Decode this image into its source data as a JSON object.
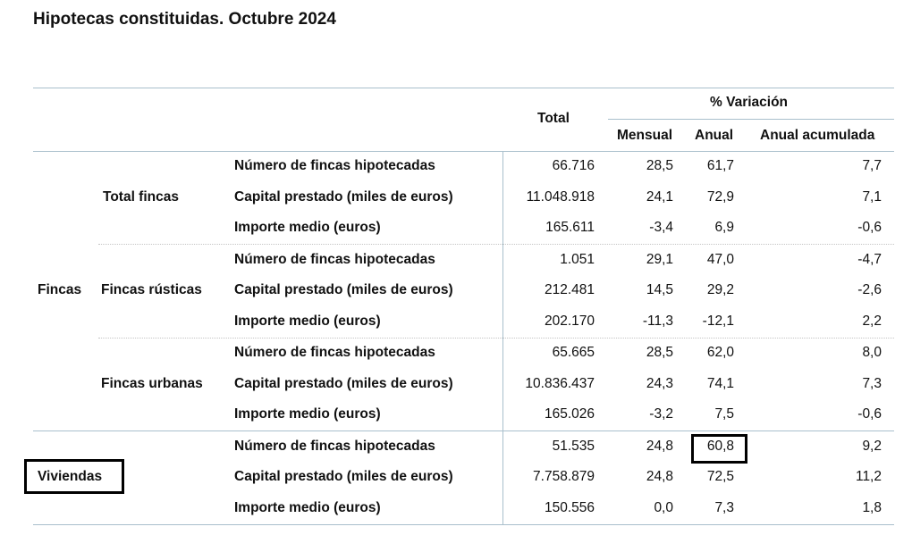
{
  "title": "Hipotecas constituidas. Octubre 2024",
  "header": {
    "total": "Total",
    "variation": "% Variación",
    "mensual": "Mensual",
    "anual": "Anual",
    "anual_acumulada": "Anual acumulada"
  },
  "group_fincas": "Fincas",
  "group_viviendas": "Viviendas",
  "sections": [
    {
      "label": "Total fincas",
      "rows": [
        {
          "metric": "Número de fincas hipotecadas",
          "total": "66.716",
          "mensual": "28,5",
          "anual": "61,7",
          "acumulada": "7,7"
        },
        {
          "metric": "Capital prestado (miles de euros)",
          "total": "11.048.918",
          "mensual": "24,1",
          "anual": "72,9",
          "acumulada": "7,1"
        },
        {
          "metric": "Importe medio (euros)",
          "total": "165.611",
          "mensual": "-3,4",
          "anual": "6,9",
          "acumulada": "-0,6"
        }
      ]
    },
    {
      "label": "Fincas rústicas",
      "rows": [
        {
          "metric": "Número de fincas hipotecadas",
          "total": "1.051",
          "mensual": "29,1",
          "anual": "47,0",
          "acumulada": "-4,7"
        },
        {
          "metric": "Capital prestado (miles de euros)",
          "total": "212.481",
          "mensual": "14,5",
          "anual": "29,2",
          "acumulada": "-2,6"
        },
        {
          "metric": "Importe medio (euros)",
          "total": "202.170",
          "mensual": "-11,3",
          "anual": "-12,1",
          "acumulada": "2,2"
        }
      ]
    },
    {
      "label": "Fincas urbanas",
      "rows": [
        {
          "metric": "Número de fincas hipotecadas",
          "total": "65.665",
          "mensual": "28,5",
          "anual": "62,0",
          "acumulada": "8,0"
        },
        {
          "metric": "Capital prestado (miles de euros)",
          "total": "10.836.437",
          "mensual": "24,3",
          "anual": "74,1",
          "acumulada": "7,3"
        },
        {
          "metric": "Importe medio (euros)",
          "total": "165.026",
          "mensual": "-3,2",
          "anual": "7,5",
          "acumulada": "-0,6"
        }
      ]
    },
    {
      "label": "",
      "rows": [
        {
          "metric": "Número de fincas hipotecadas",
          "total": "51.535",
          "mensual": "24,8",
          "anual": "60,8",
          "acumulada": "9,2"
        },
        {
          "metric": "Capital prestado (miles de euros)",
          "total": "7.758.879",
          "mensual": "24,8",
          "anual": "72,5",
          "acumulada": "11,2"
        },
        {
          "metric": "Importe medio (euros)",
          "total": "150.556",
          "mensual": "0,0",
          "anual": "7,3",
          "acumulada": "1,8"
        }
      ]
    }
  ]
}
